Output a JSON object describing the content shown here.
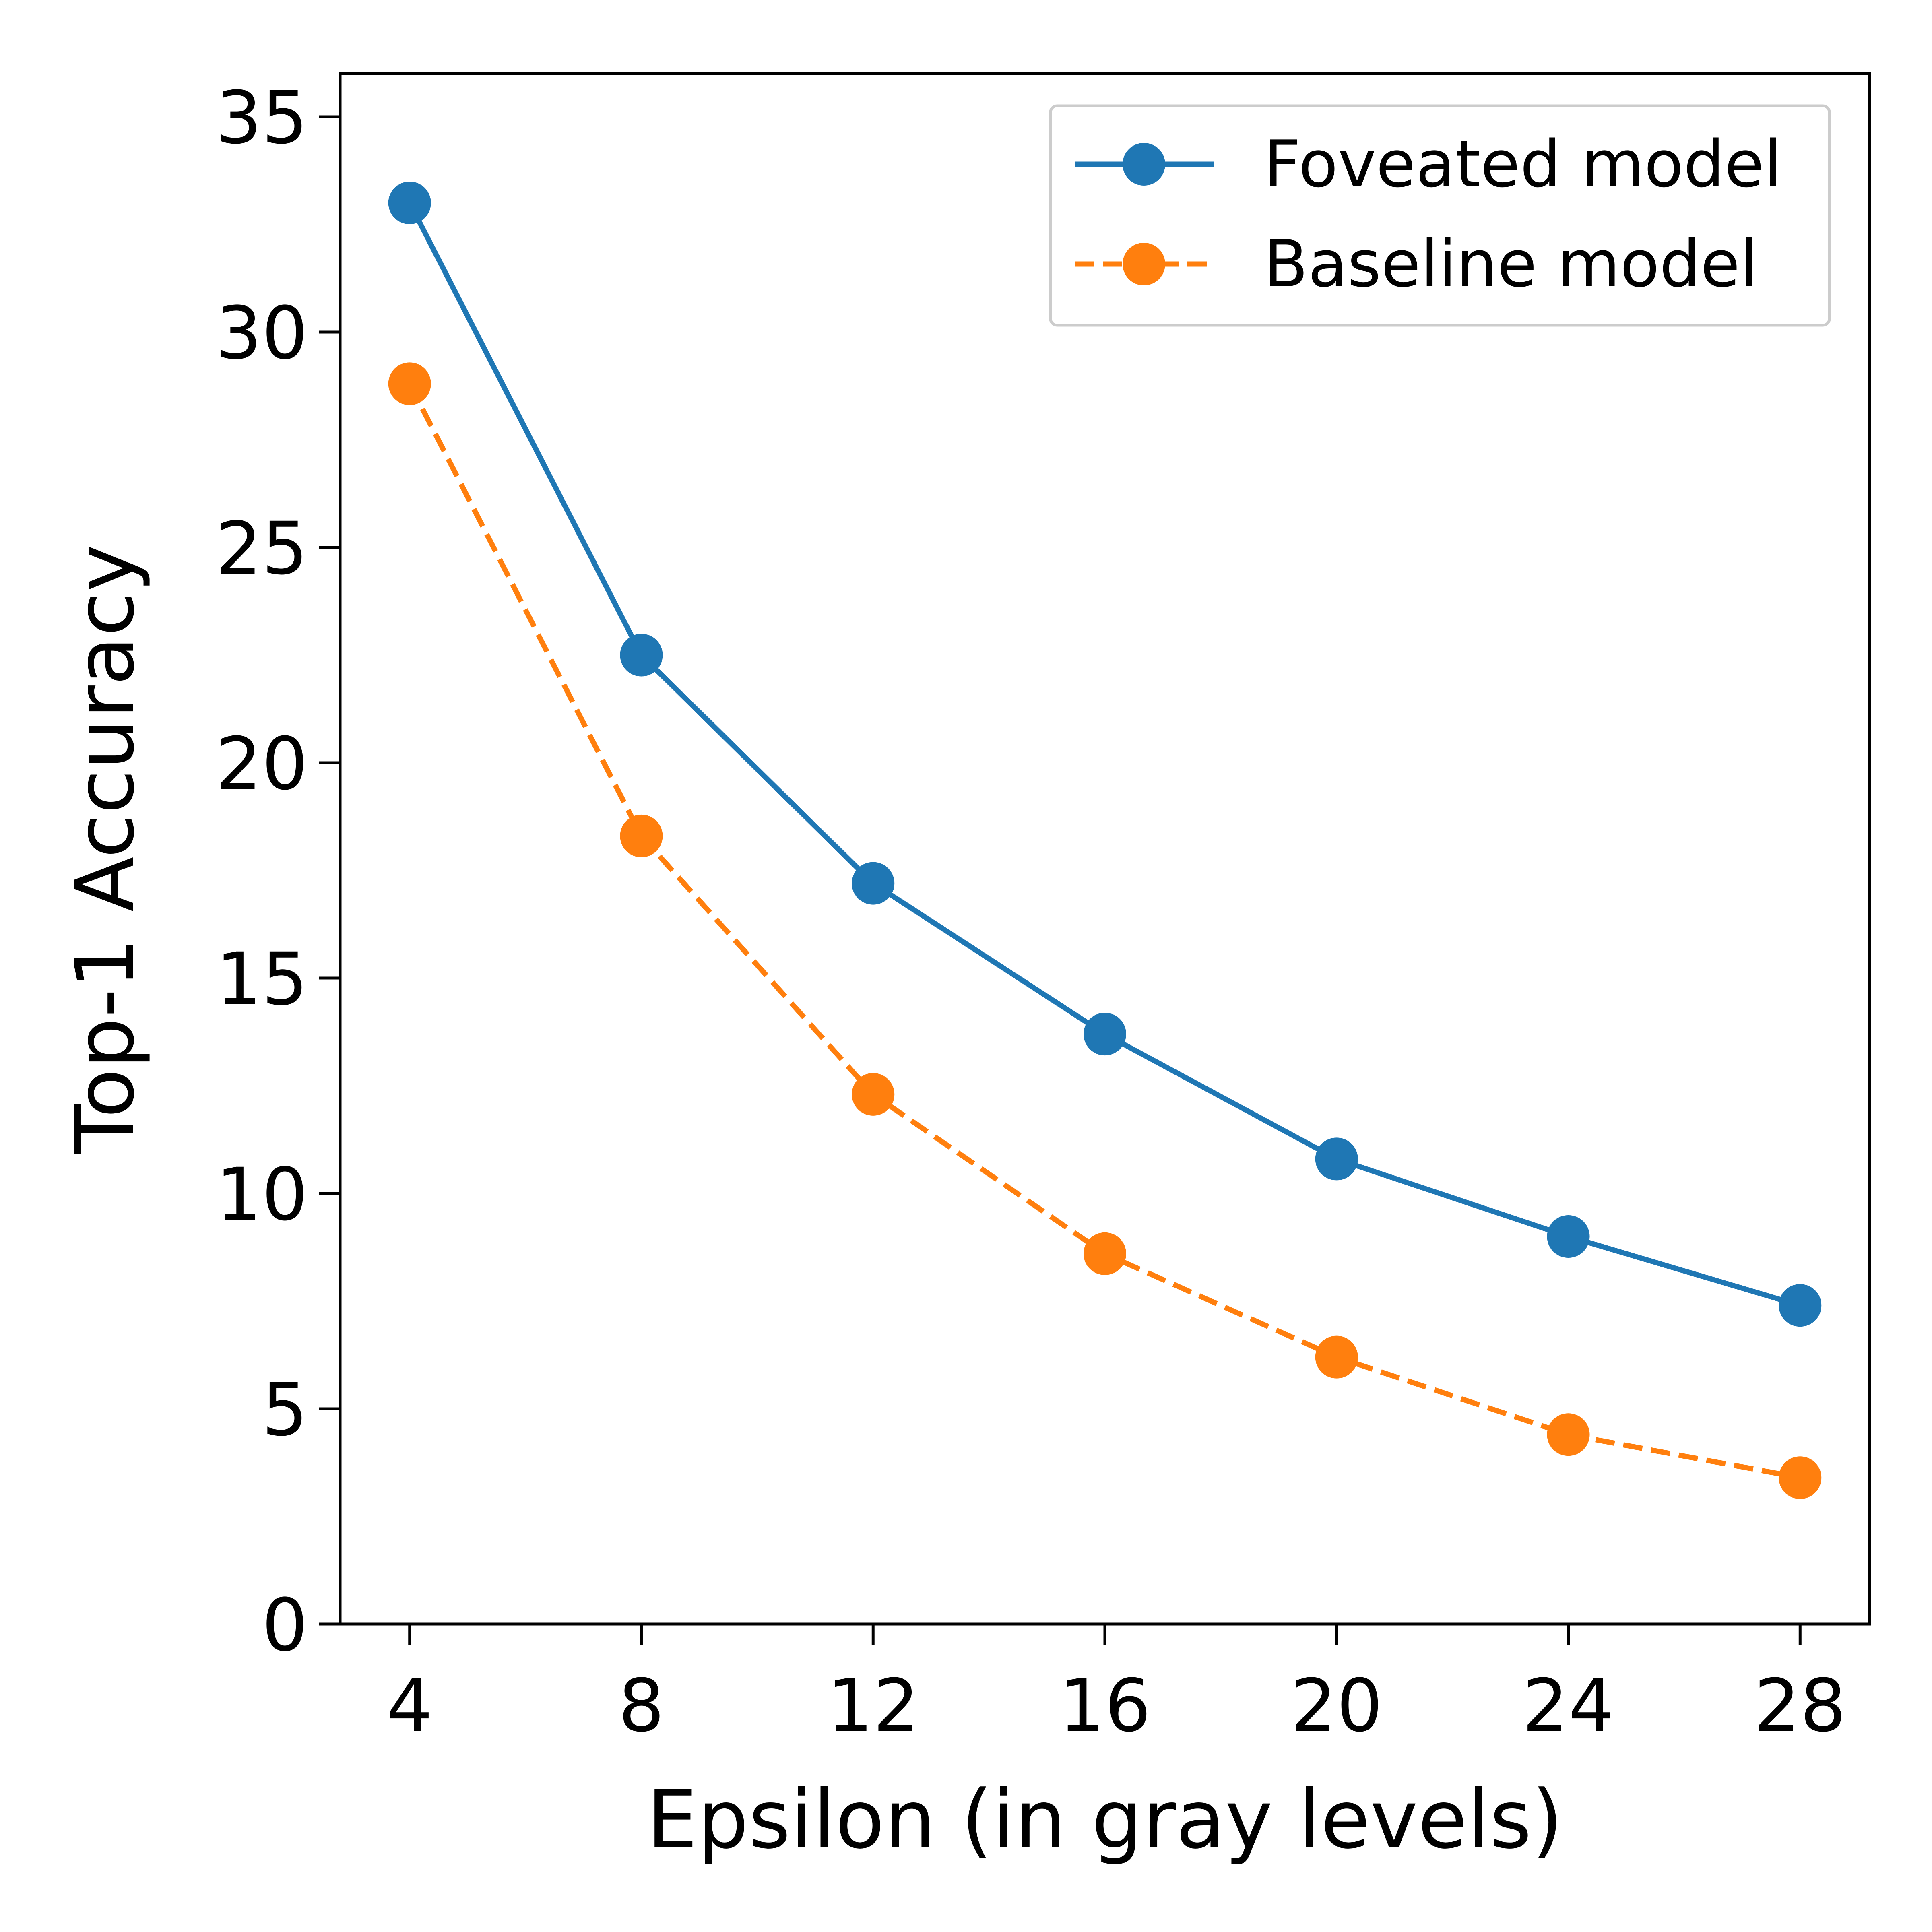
{
  "chart_data": {
    "type": "line",
    "title": "",
    "xlabel": "Epsilon (in gray levels)",
    "ylabel": "Top-1 Accuracy",
    "x": [
      4,
      8,
      12,
      16,
      20,
      24,
      28
    ],
    "xlim": [
      2.8,
      29.2
    ],
    "ylim": [
      0,
      36
    ],
    "xticks": [
      4,
      8,
      12,
      16,
      20,
      24,
      28
    ],
    "yticks": [
      0,
      5,
      10,
      15,
      20,
      25,
      30,
      35
    ],
    "xtick_labels": [
      "4",
      "8",
      "12",
      "16",
      "20",
      "24",
      "28"
    ],
    "ytick_labels": [
      "0",
      "5",
      "10",
      "15",
      "20",
      "25",
      "30",
      "35"
    ],
    "grid": false,
    "legend_position": "top-right",
    "series": [
      {
        "name": "Foveated model",
        "values": [
          33.0,
          22.5,
          17.2,
          13.7,
          10.8,
          9.0,
          7.4
        ],
        "color": "#1f77b4",
        "linestyle": "solid",
        "marker": "circle"
      },
      {
        "name": "Baseline model",
        "values": [
          28.8,
          18.3,
          12.3,
          8.6,
          6.2,
          4.4,
          3.4
        ],
        "color": "#ff7f0e",
        "linestyle": "dashed",
        "marker": "circle"
      }
    ]
  }
}
